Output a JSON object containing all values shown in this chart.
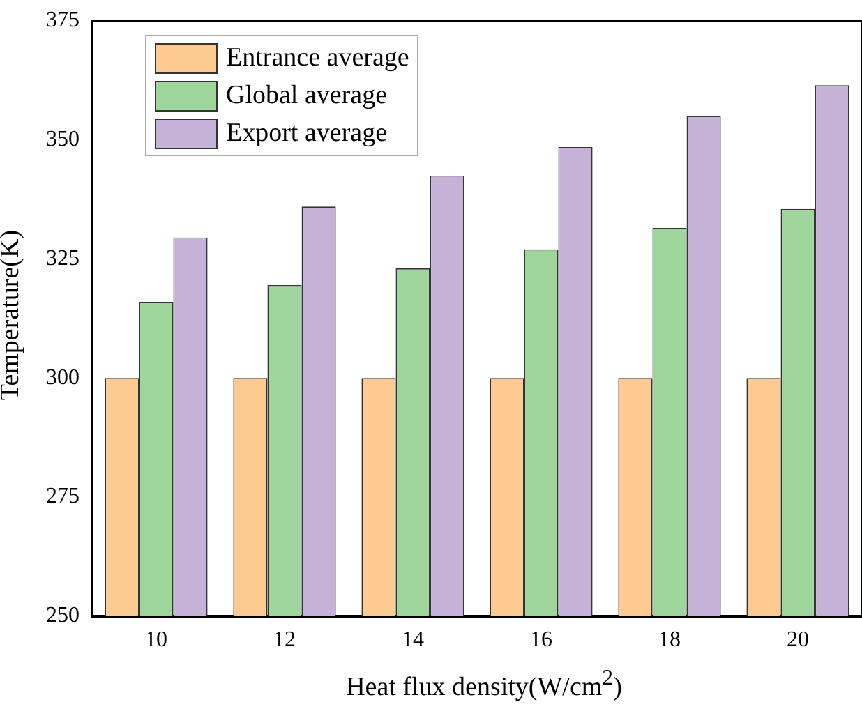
{
  "chart_data": {
    "type": "bar",
    "xlabel": "Heat flux density(W/cm$^{2}$)",
    "ylabel": "Temperature(K)",
    "categories": [
      "10",
      "12",
      "14",
      "16",
      "18",
      "20"
    ],
    "series": [
      {
        "name": "Entrance average",
        "color": "#fdcb92",
        "values": [
          300,
          300,
          300,
          300,
          300,
          300
        ]
      },
      {
        "name": "Global average",
        "color": "#9dd59b",
        "values": [
          316,
          319.5,
          323,
          327,
          331.5,
          335.5
        ]
      },
      {
        "name": "Export average",
        "color": "#c5b3d7",
        "values": [
          329.5,
          336,
          342.5,
          348.5,
          355,
          361.5
        ]
      }
    ],
    "ylim": [
      250,
      375
    ],
    "yticks": [
      250,
      275,
      300,
      325,
      350,
      375
    ],
    "grid": false,
    "legend": "top left"
  }
}
